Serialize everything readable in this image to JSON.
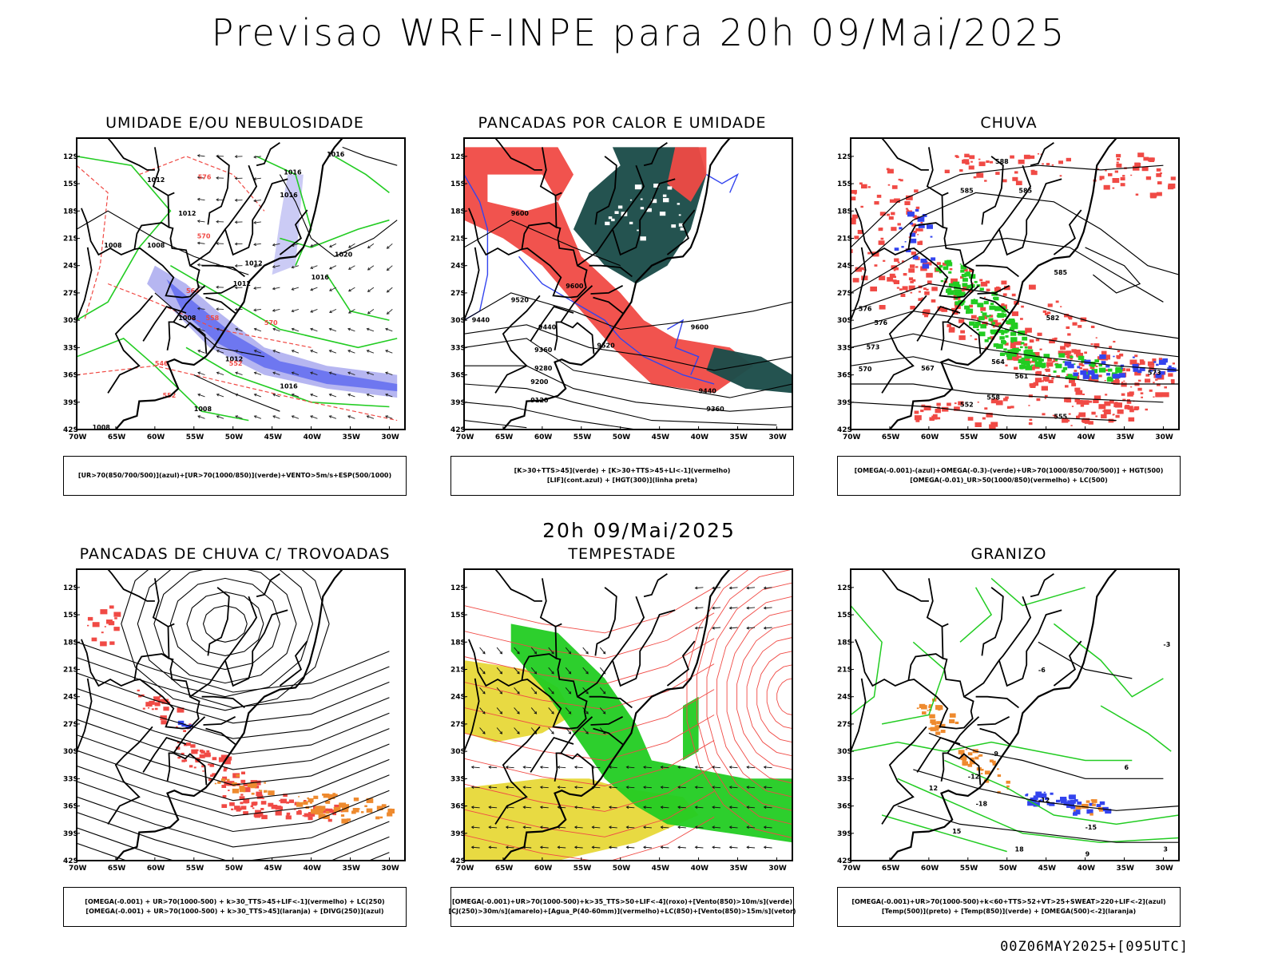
{
  "header": {
    "title": "Previsao WRF-INPE  para 20h 09/Mai/2025"
  },
  "mid_title": "20h 09/Mai/2025",
  "footer": "00Z06MAY2025+[095UTC]",
  "axes": {
    "lon_labels": [
      "70W",
      "65W",
      "60W",
      "55W",
      "50W",
      "45W",
      "40W",
      "35W",
      "30W"
    ],
    "lat_labels": [
      "12S",
      "15S",
      "18S",
      "21S",
      "24S",
      "27S",
      "30S",
      "33S",
      "36S",
      "39S",
      "42S"
    ]
  },
  "colors": {
    "red": "#f04a45",
    "green": "#22cc22",
    "blue": "#3344ee",
    "lavender": "#a9a9ef",
    "dark_teal": "#1d4d4a",
    "yellow": "#e6d62e",
    "orange": "#ee8a2e",
    "black": "#000000"
  },
  "panels": [
    {
      "id": "umidade",
      "title": "UMIDADE E/OU NEBULOSIDADE",
      "legend": [
        "[UR>70(850/700/500)](azul)+[UR>70(1000/850)](verde)+VENTO>5m/s+ESP(500/1000)"
      ],
      "contour_labels": [
        "1012",
        "1016",
        "1016",
        "1012",
        "1008",
        "1012",
        "1016",
        "1020",
        "1012",
        "1008",
        "1012",
        "1016",
        "1008",
        "1008",
        "1008",
        "1016",
        "576",
        "570",
        "564",
        "558",
        "552",
        "546",
        "552",
        "570"
      ]
    },
    {
      "id": "pancadas_calor",
      "title": "PANCADAS POR CALOR E UMIDADE",
      "legend": [
        "[K>30+TTS>45](verde) + [K>30+TTS>45+LI<-1](vermelho)",
        "[LIF](cont.azul) + [HGT(300)](linha preta)"
      ],
      "contour_labels": [
        "9600",
        "9600",
        "9520",
        "9440",
        "9440",
        "9360",
        "9280",
        "9200",
        "9120",
        "9520",
        "9600",
        "9440",
        "9360"
      ]
    },
    {
      "id": "chuva",
      "title": "CHUVA",
      "legend": [
        "[OMEGA(-0.001)-(azul)+OMEGA(-0.3)-(verde)+UR>70(1000/850/700/500)] + HGT(500)",
        "[OMEGA(-0.01)_UR>50(1000/850)(vermelho) + LC(500)"
      ],
      "contour_labels": [
        "588",
        "585",
        "585",
        "582",
        "585",
        "576",
        "573",
        "570",
        "567",
        "564",
        "561",
        "558",
        "552",
        "555",
        "573",
        "576"
      ]
    },
    {
      "id": "trovoadas",
      "title": "PANCADAS DE CHUVA C/ TROVOADAS",
      "legend": [
        "[OMEGA(-0.001) + UR>70(1000-500) + k>30_TTS>45+LIF<-1](vermelho) + LC(250)",
        "[OMEGA(-0.001) + UR>70(1000-500) + k>30_TTS>45](laranja) + [DIVG(250)](azul)"
      ],
      "contour_labels": []
    },
    {
      "id": "tempestade",
      "title": "TEMPESTADE",
      "legend": [
        "[OMEGA(-0.001)+UR>70(1000-500)+k>35_TTS>50+LIF<-4](roxo)+[Vento(850)>10m/s](verde)",
        "[CJ(250)>30m/s](amarelo)+[Agua_P(40-60mm)](vermelho)+LC(850)+[Vento(850)>15m/s](vetor)"
      ],
      "contour_labels": []
    },
    {
      "id": "granizo",
      "title": "GRANIZO",
      "legend": [
        "[OMEGA(-0.001)+UR>70(1000-500)+k<60+TTS>52+VT>25+SWEAT>220+LIF<-2](azul)",
        "[Temp(500)](preto) + [Temp(850)](verde) + [OMEGA(500)<-2](laranja)"
      ],
      "contour_labels": [
        "-3",
        "-6",
        "-9",
        "-12",
        "-12",
        "-15",
        "-18",
        "12",
        "15",
        "18",
        "9",
        "6",
        "3"
      ]
    }
  ]
}
